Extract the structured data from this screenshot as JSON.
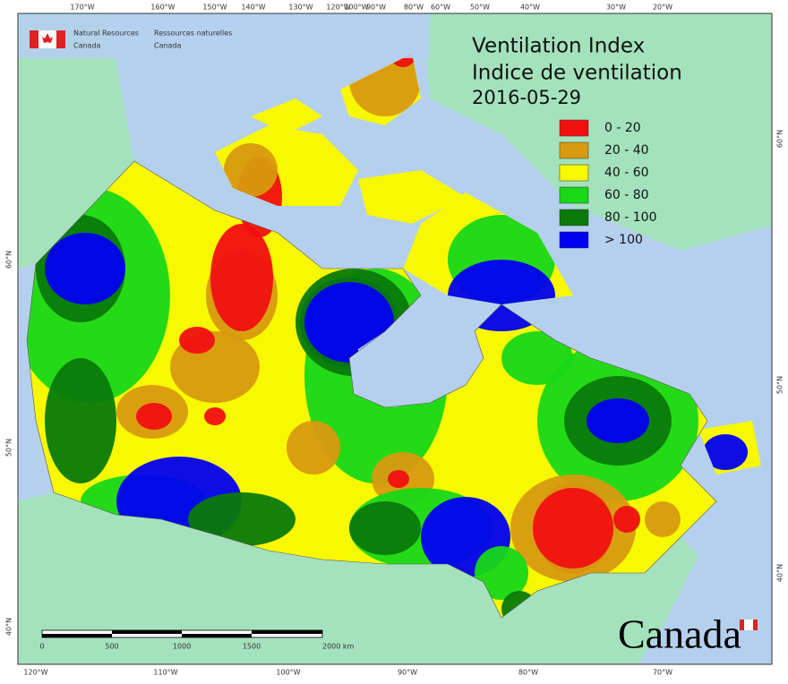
{
  "header": {
    "en": [
      "Natural Resources",
      "Canada"
    ],
    "fr": [
      "Ressources naturelles",
      "Canada"
    ]
  },
  "title": [
    "Ventilation Index",
    "Indice de ventilation"
  ],
  "date": "2016-05-29",
  "legend": [
    {
      "label": "0 - 20",
      "color": "#f01010"
    },
    {
      "label": "20 - 40",
      "color": "#d89a10"
    },
    {
      "label": "40 - 60",
      "color": "#f8f800"
    },
    {
      "label": "60 - 80",
      "color": "#18d818"
    },
    {
      "label": "80 - 100",
      "color": "#0a7a0a"
    },
    {
      "label": "> 100",
      "color": "#0000f0"
    }
  ],
  "top_labels": [
    "170°W",
    "160°W",
    "150°W",
    "140°W",
    "130°W",
    "120°W",
    "100°W",
    "90°W",
    "80°W",
    "60°W",
    "50°W",
    "40°W",
    "30°W",
    "20°W"
  ],
  "bottom_labels": [
    "120°W",
    "110°W",
    "100°W",
    "90°W",
    "80°W",
    "70°W"
  ],
  "left_labels": [
    "60°N",
    "50°N",
    "40°N"
  ],
  "right_labels": [
    "60°N",
    "50°N",
    "40°N"
  ],
  "scale_labels": [
    "0",
    "500",
    "1000",
    "1500",
    "2000  km"
  ],
  "wordmark": "Canada"
}
